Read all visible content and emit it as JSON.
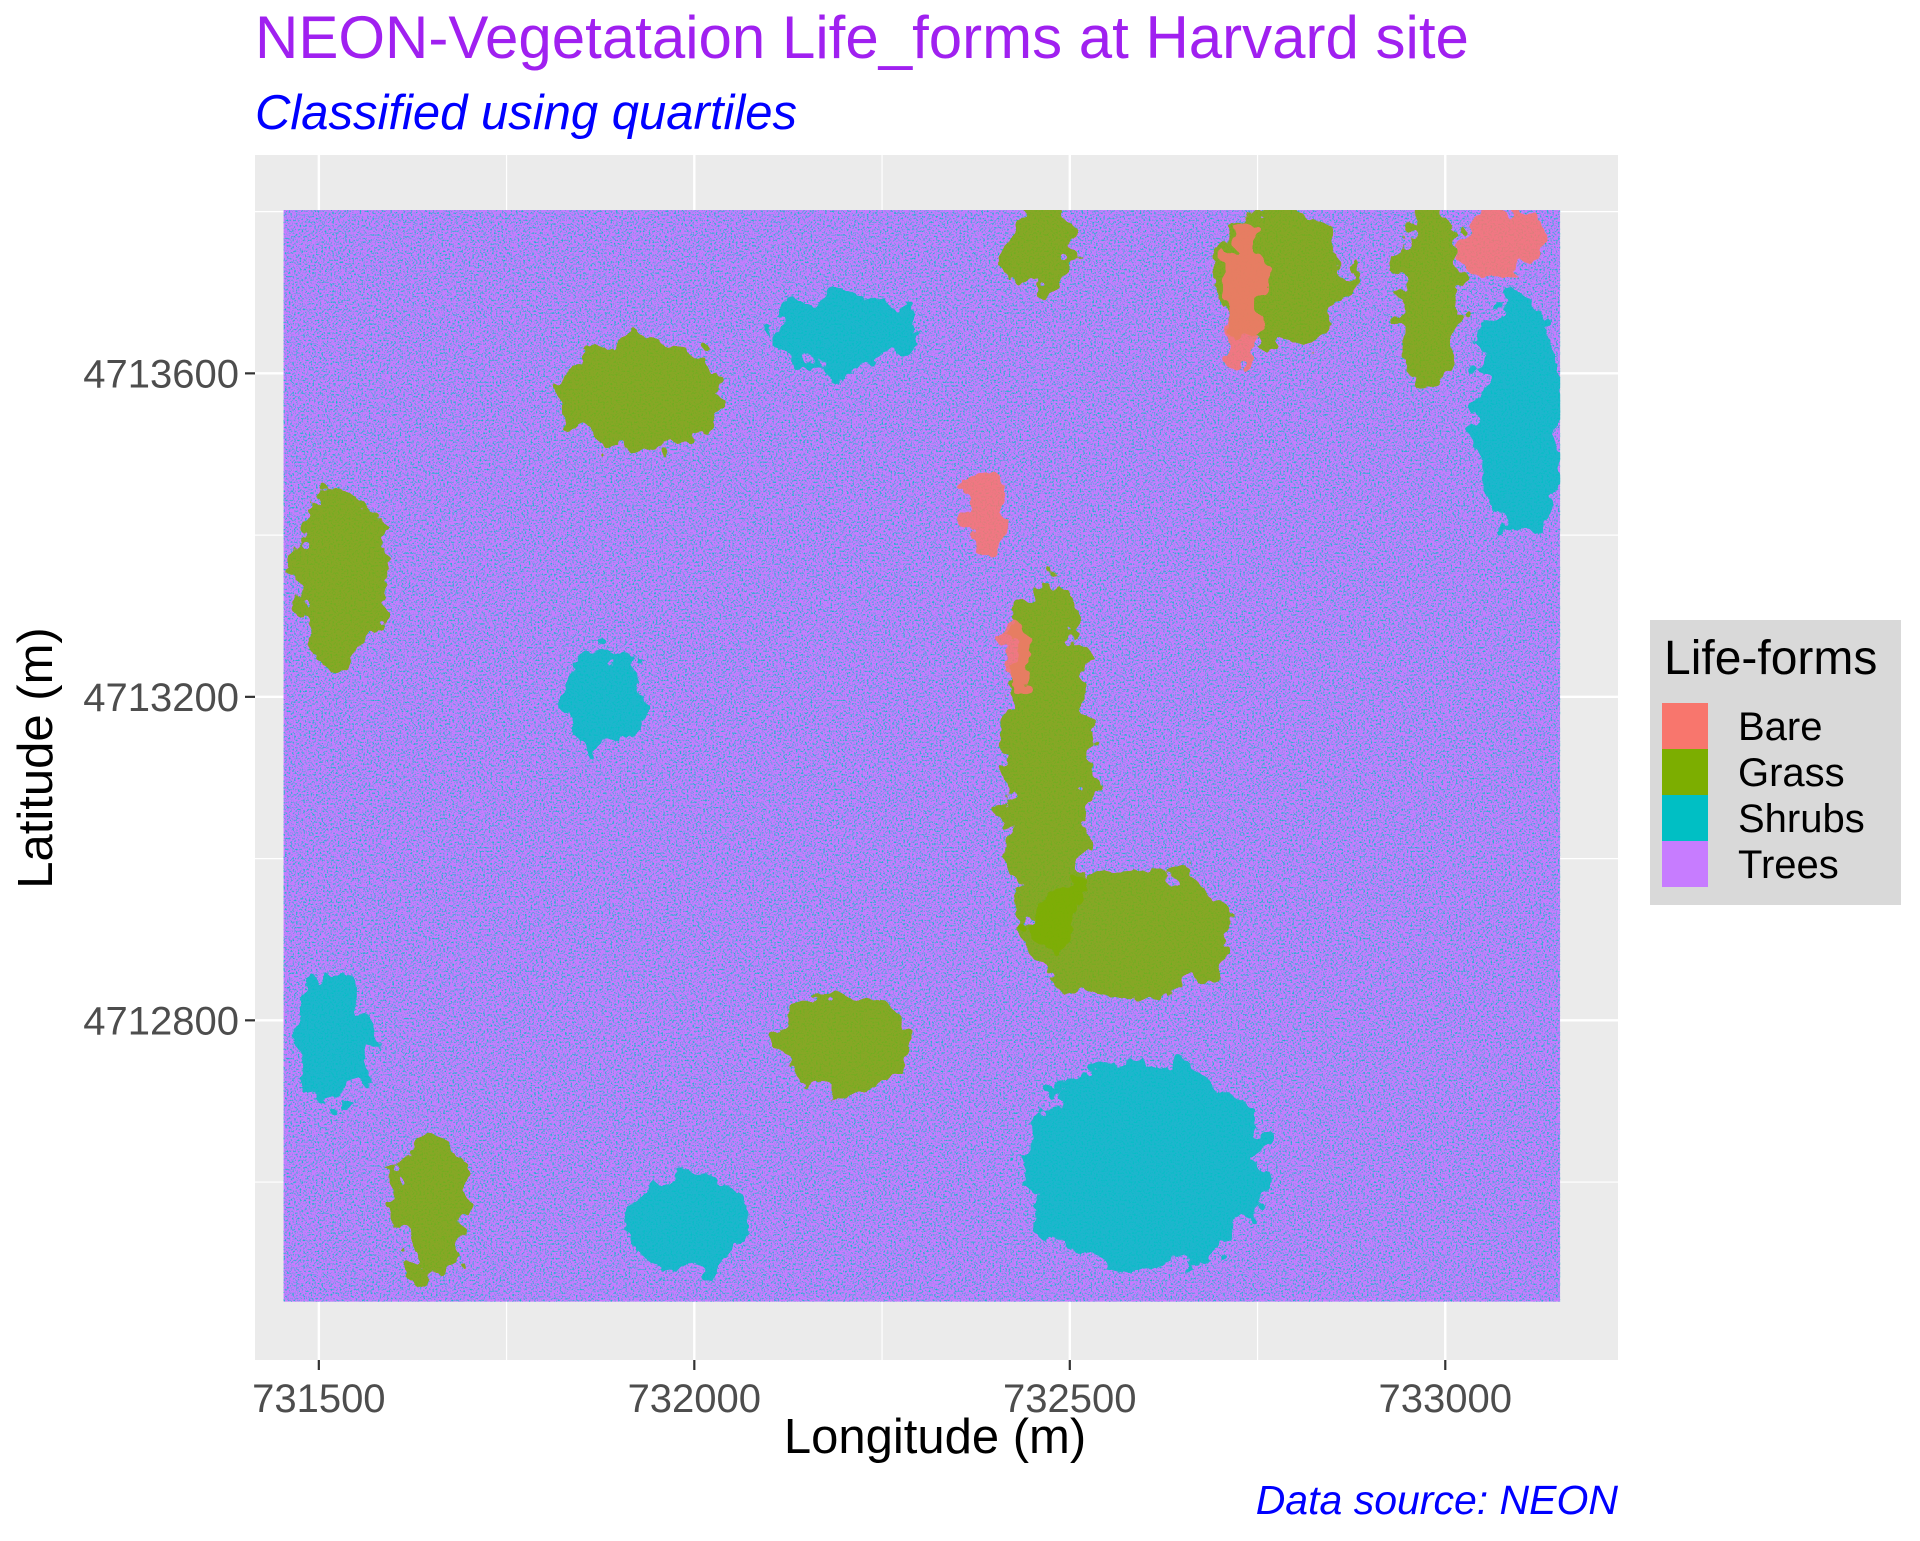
{
  "chart_data": {
    "type": "heatmap",
    "title": "NEON-Vegetataion Life_forms at Harvard site",
    "subtitle": "Classified using quartiles",
    "caption": "Data source: NEON",
    "xlabel": "Longitude (m)",
    "ylabel": "Latitude (m)",
    "xlim": [
      731415,
      733230
    ],
    "ylim": [
      4712380,
      4713870
    ],
    "x_ticks": [
      731500,
      732000,
      732500,
      733000
    ],
    "x_tick_labels": [
      "731500",
      "732000",
      "732500",
      "733000"
    ],
    "y_ticks": [
      4712800,
      4713200,
      4713600
    ],
    "y_tick_labels": [
      "4712800",
      "4713200",
      "4713600"
    ],
    "raster_extent": {
      "xmin": 731453,
      "xmax": 733153,
      "ymin": 4712452,
      "ymax": 4713802
    },
    "grid": true,
    "legend": {
      "title": "Life-forms",
      "position": "right",
      "entries": [
        {
          "label": "Bare",
          "color": "#F8766D"
        },
        {
          "label": "Grass",
          "color": "#7CAE00"
        },
        {
          "label": "Shrubs",
          "color": "#00BFC4"
        },
        {
          "label": "Trees",
          "color": "#C77CFF"
        }
      ]
    },
    "dominant_class": "Trees",
    "patches": [
      {
        "class": "Grass",
        "x": 731930,
        "y": 4713575,
        "rx": 110,
        "ry": 70
      },
      {
        "class": "Grass",
        "x": 732470,
        "y": 4713120,
        "rx": 60,
        "ry": 230
      },
      {
        "class": "Grass",
        "x": 732580,
        "y": 4712910,
        "rx": 140,
        "ry": 80
      },
      {
        "class": "Grass",
        "x": 732460,
        "y": 4713760,
        "rx": 45,
        "ry": 60
      },
      {
        "class": "Grass",
        "x": 732780,
        "y": 4713720,
        "rx": 90,
        "ry": 90
      },
      {
        "class": "Grass",
        "x": 732980,
        "y": 4713700,
        "rx": 40,
        "ry": 120
      },
      {
        "class": "Grass",
        "x": 731530,
        "y": 4713350,
        "rx": 60,
        "ry": 110
      },
      {
        "class": "Grass",
        "x": 731650,
        "y": 4712570,
        "rx": 50,
        "ry": 90
      },
      {
        "class": "Grass",
        "x": 732200,
        "y": 4712770,
        "rx": 90,
        "ry": 60
      },
      {
        "class": "Bare",
        "x": 733070,
        "y": 4713760,
        "rx": 55,
        "ry": 45
      },
      {
        "class": "Bare",
        "x": 732730,
        "y": 4713700,
        "rx": 25,
        "ry": 90
      },
      {
        "class": "Bare",
        "x": 732390,
        "y": 4713430,
        "rx": 30,
        "ry": 50
      },
      {
        "class": "Bare",
        "x": 732430,
        "y": 4713250,
        "rx": 20,
        "ry": 35
      },
      {
        "class": "Shrubs",
        "x": 732200,
        "y": 4713650,
        "rx": 90,
        "ry": 50
      },
      {
        "class": "Shrubs",
        "x": 731520,
        "y": 4712780,
        "rx": 50,
        "ry": 80
      },
      {
        "class": "Shrubs",
        "x": 732600,
        "y": 4712620,
        "rx": 160,
        "ry": 130
      },
      {
        "class": "Shrubs",
        "x": 733100,
        "y": 4713550,
        "rx": 60,
        "ry": 150
      },
      {
        "class": "Shrubs",
        "x": 731880,
        "y": 4713200,
        "rx": 50,
        "ry": 60
      },
      {
        "class": "Shrubs",
        "x": 731990,
        "y": 4712550,
        "rx": 80,
        "ry": 60
      }
    ]
  }
}
